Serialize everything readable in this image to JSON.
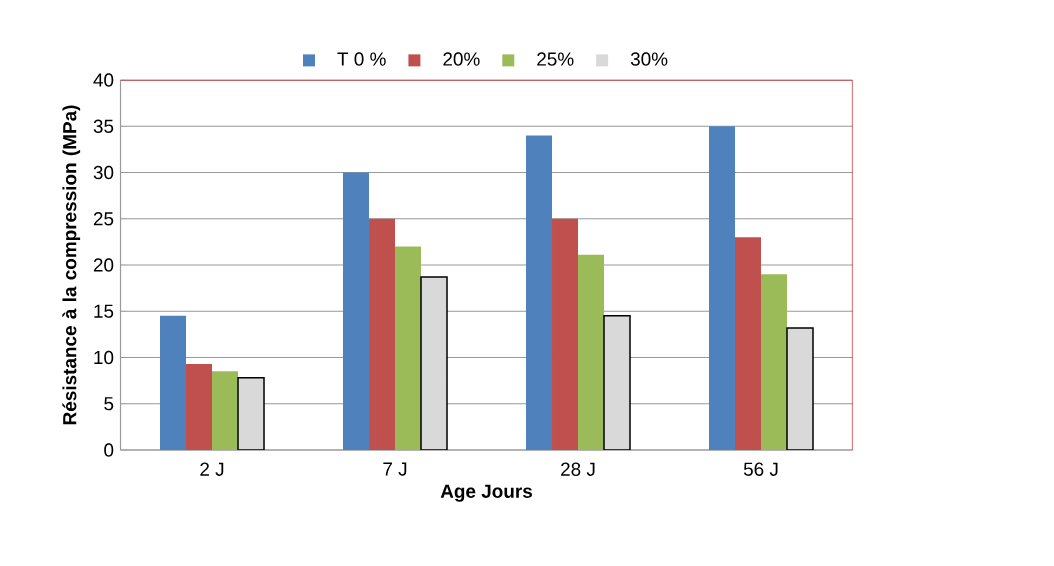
{
  "chart_data": {
    "type": "bar",
    "xlabel": "Age Jours",
    "ylabel": "Résistance à la compression (MPa)",
    "categories": [
      "2 J",
      "7 J",
      "28 J",
      "56 J"
    ],
    "series": [
      {
        "name": "T 0 %",
        "color": "#4f81bd",
        "values": [
          14.5,
          30,
          34,
          35
        ]
      },
      {
        "name": "20%",
        "color": "#c0504d",
        "values": [
          9.3,
          25,
          25,
          23
        ]
      },
      {
        "name": "25%",
        "color": "#9bbb59",
        "values": [
          8.5,
          22,
          21.1,
          19
        ]
      },
      {
        "name": "30%",
        "color": "#d9d9d9",
        "values": [
          7.8,
          18.7,
          14.5,
          13.2
        ]
      }
    ],
    "ylim": [
      0,
      40
    ],
    "yticks": [
      0,
      5,
      10,
      15,
      20,
      25,
      30,
      35,
      40
    ],
    "grid": "y",
    "legend": "top"
  }
}
